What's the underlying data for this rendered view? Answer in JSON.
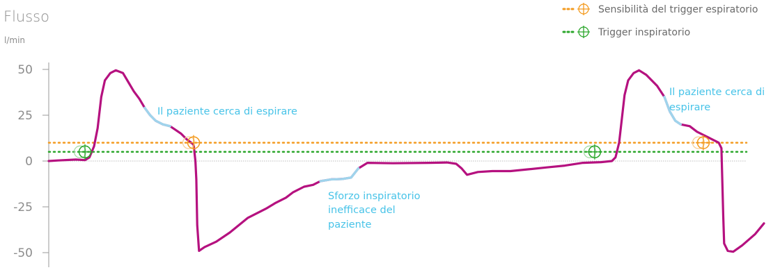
{
  "chart_data": {
    "type": "line",
    "title": "Flusso",
    "ylabel": "l/min",
    "ylim": [
      -55,
      55
    ],
    "yticks": [
      50,
      25,
      0,
      -25,
      -50
    ],
    "ytick_labels": [
      "50",
      "25",
      "0",
      "-25",
      "-50"
    ],
    "x_unit_note": "",
    "series": [
      {
        "values": [
          [
            0,
            0
          ],
          [
            10,
            0.3
          ],
          [
            30,
            0.8
          ],
          [
            40,
            0.5
          ],
          [
            45,
            2
          ],
          [
            50,
            8
          ],
          [
            54,
            18
          ],
          [
            58,
            35
          ],
          [
            62,
            44
          ],
          [
            68,
            48
          ],
          [
            74,
            49.5
          ],
          [
            82,
            48
          ],
          [
            88,
            43
          ],
          [
            94,
            38
          ],
          [
            100,
            34
          ],
          [
            106,
            29
          ],
          [
            112,
            25
          ],
          [
            118,
            22
          ],
          [
            126,
            20
          ],
          [
            134,
            19
          ],
          [
            140,
            17
          ],
          [
            146,
            15
          ],
          [
            152,
            12
          ],
          [
            156,
            10.5
          ],
          [
            160,
            9
          ],
          [
            162,
            0
          ],
          [
            163,
            -10
          ],
          [
            164,
            -35
          ],
          [
            166,
            -49
          ],
          [
            172,
            -47
          ],
          [
            185,
            -44
          ],
          [
            200,
            -39
          ],
          [
            220,
            -31
          ],
          [
            240,
            -26
          ],
          [
            250,
            -23
          ],
          [
            262,
            -20
          ],
          [
            270,
            -17
          ],
          [
            282,
            -14
          ],
          [
            292,
            -13
          ],
          [
            300,
            -11
          ],
          [
            312,
            -10
          ],
          [
            324,
            -9.8
          ],
          [
            334,
            -9
          ],
          [
            342,
            -4
          ],
          [
            352,
            -1
          ],
          [
            380,
            -1.2
          ],
          [
            420,
            -1
          ],
          [
            440,
            -0.8
          ],
          [
            450,
            -1.5
          ],
          [
            456,
            -4
          ],
          [
            462,
            -7.5
          ],
          [
            474,
            -6
          ],
          [
            490,
            -5.5
          ],
          [
            510,
            -5.5
          ],
          [
            530,
            -4.5
          ],
          [
            550,
            -3.5
          ],
          [
            570,
            -2.5
          ],
          [
            590,
            -1
          ],
          [
            610,
            -0.6
          ],
          [
            622,
            0
          ],
          [
            626,
            2
          ],
          [
            630,
            10
          ],
          [
            636,
            36
          ],
          [
            640,
            44
          ],
          [
            646,
            48
          ],
          [
            652,
            49.5
          ],
          [
            660,
            47
          ],
          [
            672,
            41
          ],
          [
            680,
            35
          ],
          [
            686,
            27
          ],
          [
            692,
            22
          ],
          [
            698,
            20
          ],
          [
            708,
            19
          ],
          [
            716,
            16
          ],
          [
            724,
            14
          ],
          [
            732,
            12
          ],
          [
            740,
            10
          ],
          [
            743,
            7
          ],
          [
            745,
            -30
          ],
          [
            746,
            -45
          ],
          [
            750,
            -49
          ],
          [
            756,
            -49.5
          ],
          [
            766,
            -46
          ],
          [
            780,
            -40
          ],
          [
            790,
            -34
          ]
        ]
      }
    ],
    "annotations": [
      "Il paziente cerca di espirare",
      "Sforzo inspiratorio inefficace del paziente",
      "Il paziente cerca di espirare"
    ],
    "reference_lines": [
      {
        "label": "Sensibilità del trigger espiratorio",
        "y": 10,
        "color": "#f39a1e"
      },
      {
        "label": "Trigger inspiratorio",
        "y": 5,
        "color": "#2aa62a"
      }
    ],
    "legend": {
      "position": "top-right"
    },
    "grid": false
  },
  "colors": {
    "trace": "#b5117f",
    "highlight": "#9fd4ec",
    "expiratory_trigger": "#f39a1e",
    "inspiratory_trigger": "#2aa62a",
    "axis": "#8c8c8c",
    "annotation": "#47c3e8"
  },
  "labels": {
    "title": "Flusso",
    "unit": "l/min",
    "note1": "Il paziente cerca di espirare",
    "note2_lines": [
      "Sforzo inspiratorio",
      "inefficace del",
      "paziente"
    ],
    "note3_lines": [
      "Il paziente cerca di",
      "espirare"
    ],
    "legend_expiratory": "Sensibilità del trigger espiratorio",
    "legend_inspiratory": "Trigger inspiratorio"
  }
}
